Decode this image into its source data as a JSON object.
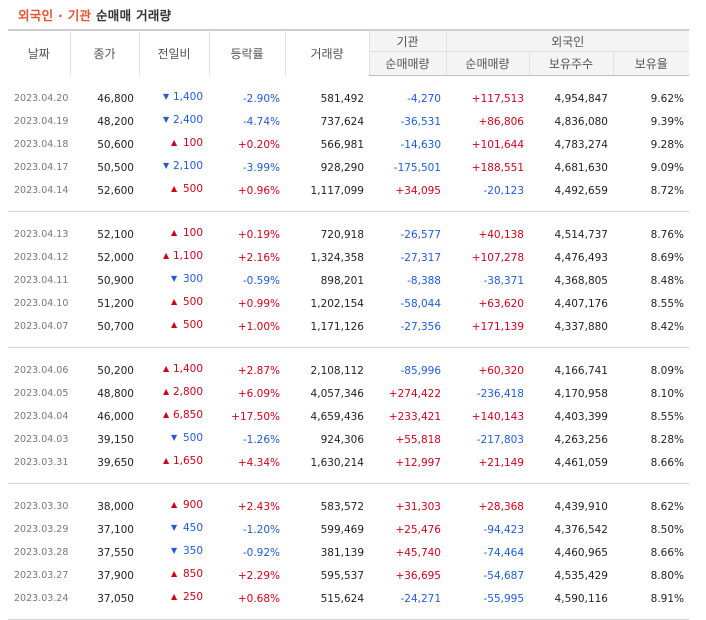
{
  "title": {
    "highlight": "외국인 · 기관",
    "rest": " 순매매 거래량"
  },
  "headers": {
    "date": "날짜",
    "close": "종가",
    "change": "전일비",
    "rate": "등락률",
    "volume": "거래량",
    "inst_group": "기관",
    "inst_net": "순매매량",
    "foreign_group": "외국인",
    "foreign_net": "순매매량",
    "foreign_hold": "보유주수",
    "foreign_ratio": "보유율"
  },
  "colors": {
    "up": "#d0021b",
    "down": "#1f5bd6",
    "title_accent": "#e8532d"
  },
  "icons": {
    "up": "up-triangle-icon",
    "down": "down-triangle-icon"
  },
  "groups": [
    [
      {
        "date": "2023.04.20",
        "close": "46,800",
        "dir": "down",
        "change": "1,400",
        "rate": "-2.90%",
        "volume": "581,492",
        "inst": "-4,270",
        "foreign": "+117,513",
        "hold": "4,954,847",
        "ratio": "9.62%"
      },
      {
        "date": "2023.04.19",
        "close": "48,200",
        "dir": "down",
        "change": "2,400",
        "rate": "-4.74%",
        "volume": "737,624",
        "inst": "-36,531",
        "foreign": "+86,806",
        "hold": "4,836,080",
        "ratio": "9.39%"
      },
      {
        "date": "2023.04.18",
        "close": "50,600",
        "dir": "up",
        "change": "100",
        "rate": "+0.20%",
        "volume": "566,981",
        "inst": "-14,630",
        "foreign": "+101,644",
        "hold": "4,783,274",
        "ratio": "9.28%"
      },
      {
        "date": "2023.04.17",
        "close": "50,500",
        "dir": "down",
        "change": "2,100",
        "rate": "-3.99%",
        "volume": "928,290",
        "inst": "-175,501",
        "foreign": "+188,551",
        "hold": "4,681,630",
        "ratio": "9.09%"
      },
      {
        "date": "2023.04.14",
        "close": "52,600",
        "dir": "up",
        "change": "500",
        "rate": "+0.96%",
        "volume": "1,117,099",
        "inst": "+34,095",
        "foreign": "-20,123",
        "hold": "4,492,659",
        "ratio": "8.72%"
      }
    ],
    [
      {
        "date": "2023.04.13",
        "close": "52,100",
        "dir": "up",
        "change": "100",
        "rate": "+0.19%",
        "volume": "720,918",
        "inst": "-26,577",
        "foreign": "+40,138",
        "hold": "4,514,737",
        "ratio": "8.76%"
      },
      {
        "date": "2023.04.12",
        "close": "52,000",
        "dir": "up",
        "change": "1,100",
        "rate": "+2.16%",
        "volume": "1,324,358",
        "inst": "-27,317",
        "foreign": "+107,278",
        "hold": "4,476,493",
        "ratio": "8.69%"
      },
      {
        "date": "2023.04.11",
        "close": "50,900",
        "dir": "down",
        "change": "300",
        "rate": "-0.59%",
        "volume": "898,201",
        "inst": "-8,388",
        "foreign": "-38,371",
        "hold": "4,368,805",
        "ratio": "8.48%"
      },
      {
        "date": "2023.04.10",
        "close": "51,200",
        "dir": "up",
        "change": "500",
        "rate": "+0.99%",
        "volume": "1,202,154",
        "inst": "-58,044",
        "foreign": "+63,620",
        "hold": "4,407,176",
        "ratio": "8.55%"
      },
      {
        "date": "2023.04.07",
        "close": "50,700",
        "dir": "up",
        "change": "500",
        "rate": "+1.00%",
        "volume": "1,171,126",
        "inst": "-27,356",
        "foreign": "+171,139",
        "hold": "4,337,880",
        "ratio": "8.42%"
      }
    ],
    [
      {
        "date": "2023.04.06",
        "close": "50,200",
        "dir": "up",
        "change": "1,400",
        "rate": "+2.87%",
        "volume": "2,108,112",
        "inst": "-85,996",
        "foreign": "+60,320",
        "hold": "4,166,741",
        "ratio": "8.09%"
      },
      {
        "date": "2023.04.05",
        "close": "48,800",
        "dir": "up",
        "change": "2,800",
        "rate": "+6.09%",
        "volume": "4,057,346",
        "inst": "+274,422",
        "foreign": "-236,418",
        "hold": "4,170,958",
        "ratio": "8.10%"
      },
      {
        "date": "2023.04.04",
        "close": "46,000",
        "dir": "up",
        "change": "6,850",
        "rate": "+17.50%",
        "volume": "4,659,436",
        "inst": "+233,421",
        "foreign": "+140,143",
        "hold": "4,403,399",
        "ratio": "8.55%"
      },
      {
        "date": "2023.04.03",
        "close": "39,150",
        "dir": "down",
        "change": "500",
        "rate": "-1.26%",
        "volume": "924,306",
        "inst": "+55,818",
        "foreign": "-217,803",
        "hold": "4,263,256",
        "ratio": "8.28%"
      },
      {
        "date": "2023.03.31",
        "close": "39,650",
        "dir": "up",
        "change": "1,650",
        "rate": "+4.34%",
        "volume": "1,630,214",
        "inst": "+12,997",
        "foreign": "+21,149",
        "hold": "4,461,059",
        "ratio": "8.66%"
      }
    ],
    [
      {
        "date": "2023.03.30",
        "close": "38,000",
        "dir": "up",
        "change": "900",
        "rate": "+2.43%",
        "volume": "583,572",
        "inst": "+31,303",
        "foreign": "+28,368",
        "hold": "4,439,910",
        "ratio": "8.62%"
      },
      {
        "date": "2023.03.29",
        "close": "37,100",
        "dir": "down",
        "change": "450",
        "rate": "-1.20%",
        "volume": "599,469",
        "inst": "+25,476",
        "foreign": "-94,423",
        "hold": "4,376,542",
        "ratio": "8.50%"
      },
      {
        "date": "2023.03.28",
        "close": "37,550",
        "dir": "down",
        "change": "350",
        "rate": "-0.92%",
        "volume": "381,139",
        "inst": "+45,740",
        "foreign": "-74,464",
        "hold": "4,460,965",
        "ratio": "8.66%"
      },
      {
        "date": "2023.03.27",
        "close": "37,900",
        "dir": "up",
        "change": "850",
        "rate": "+2.29%",
        "volume": "595,537",
        "inst": "+36,695",
        "foreign": "-54,687",
        "hold": "4,535,429",
        "ratio": "8.80%"
      },
      {
        "date": "2023.03.24",
        "close": "37,050",
        "dir": "up",
        "change": "250",
        "rate": "+0.68%",
        "volume": "515,624",
        "inst": "-24,271",
        "foreign": "-55,995",
        "hold": "4,590,116",
        "ratio": "8.91%"
      }
    ]
  ]
}
